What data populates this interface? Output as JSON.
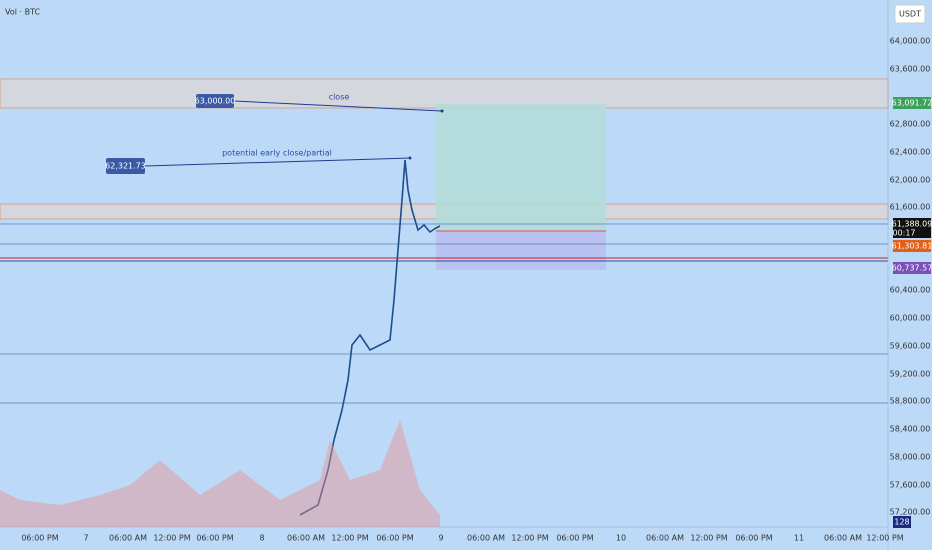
{
  "header": {
    "title": "Vol · BTC",
    "currency": "USDT"
  },
  "price_axis": [
    "64,000.00",
    "63,600.00",
    "62,800.00",
    "62,400.00",
    "62,000.00",
    "61,600.00",
    "60,400.00",
    "60,000.00",
    "59,600.00",
    "59,200.00",
    "58,800.00",
    "58,400.00",
    "58,000.00",
    "57,600.00",
    "57,200.00"
  ],
  "time_axis": [
    "06:00 PM",
    "7",
    "06:00 AM",
    "12:00 PM",
    "06:00 PM",
    "8",
    "06:00 AM",
    "12:00 PM",
    "06:00 PM",
    "9",
    "06:00 AM",
    "12:00 PM",
    "06:00 PM",
    "10",
    "06:00 AM",
    "12:00 PM",
    "06:00 PM",
    "11",
    "06:00 AM",
    "12:00 PM"
  ],
  "annotations": [
    {
      "price": "63,000.00",
      "text": "close"
    },
    {
      "price": "62,321.73",
      "text": "potential early close/partial"
    }
  ],
  "price_tags": {
    "target": "63,091.72",
    "last": "61,388.09",
    "countdown": "00:17",
    "entry": "61,303.81",
    "stop": "60,737.57",
    "volume": "128"
  }
}
